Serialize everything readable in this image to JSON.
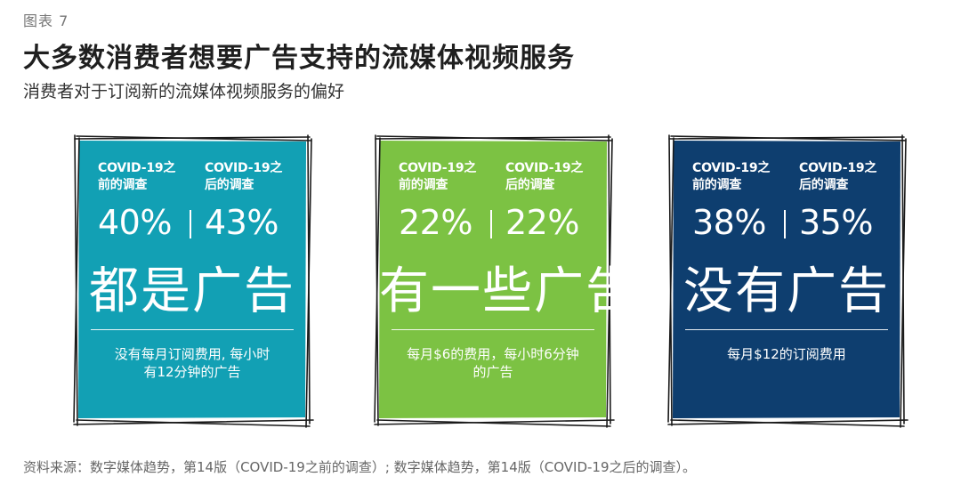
{
  "figure_label": "图表 7",
  "title": "大多数消费者想要广告支持的流媒体视频服务",
  "subtitle": "消费者对于订阅新的流媒体视频服务的偏好",
  "source": "资料来源：数字媒体趋势，第14版（COVID-19之前的调查）; 数字媒体趋势，第14版（COVID-19之后的调查）。",
  "chart_data": {
    "type": "table",
    "title": "大多数消费者想要广告支持的流媒体视频服务",
    "subtitle": "消费者对于订阅新的流媒体视频服务的偏好",
    "series_labels": [
      "COVID-19之\n前的调查",
      "COVID-19之\n后的调查"
    ],
    "options": [
      {
        "name": "都是广告",
        "description": "没有每月订阅费用, 每小时\n有12分钟的广告",
        "before": 40,
        "after": 43,
        "before_label": "40%",
        "after_label": "43%",
        "color": "#12a0b4"
      },
      {
        "name": "有一些广告",
        "description": "每月$6的费用，每小时6分钟\n的广告",
        "before": 22,
        "after": 22,
        "before_label": "22%",
        "after_label": "22%",
        "color": "#7cc243"
      },
      {
        "name": "没有广告",
        "description": "每月$12的订阅费用",
        "before": 38,
        "after": 35,
        "before_label": "38%",
        "after_label": "35%",
        "color": "#0e3e6f"
      }
    ]
  }
}
